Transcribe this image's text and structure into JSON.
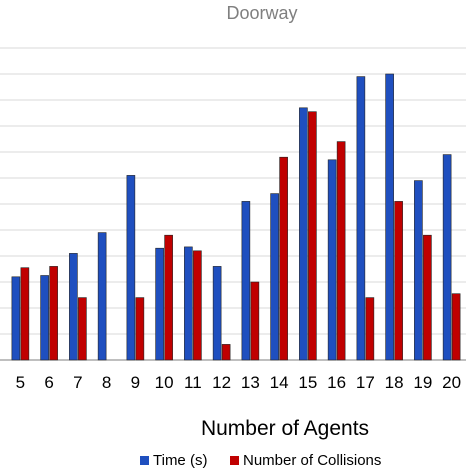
{
  "chart_data": {
    "type": "bar",
    "title": "Doorway",
    "xlabel": "Number of Agents",
    "ylabel": "",
    "categories": [
      "5",
      "6",
      "7",
      "8",
      "9",
      "10",
      "11",
      "12",
      "13",
      "14",
      "15",
      "16",
      "17",
      "18",
      "19",
      "20"
    ],
    "ylim": [
      0,
      12
    ],
    "grid": true,
    "legend_position": "bottom",
    "series": [
      {
        "name": "Time (s)",
        "color": "#1f4fbf",
        "values": [
          3.2,
          3.25,
          4.1,
          4.9,
          7.1,
          4.3,
          4.35,
          3.6,
          6.1,
          6.4,
          9.7,
          7.7,
          10.9,
          11.0,
          6.9,
          7.9
        ]
      },
      {
        "name": "Number of Collisions",
        "color": "#c00000",
        "values": [
          3.55,
          3.6,
          2.4,
          0,
          2.4,
          4.8,
          4.2,
          0.6,
          3.0,
          7.8,
          9.55,
          8.4,
          2.4,
          6.1,
          4.8,
          2.55
        ]
      }
    ]
  }
}
